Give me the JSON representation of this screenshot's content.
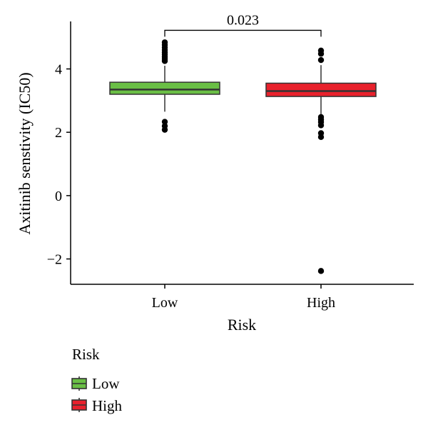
{
  "chart_data": {
    "type": "box",
    "title": "",
    "xlabel": "Risk",
    "ylabel": "Axitinib senstivity (IC50)",
    "ylim": [
      -2.8,
      5.5
    ],
    "yticks": [
      -2,
      0,
      2,
      4
    ],
    "ytick_labels": [
      "−2",
      "0",
      "2",
      "4"
    ],
    "categories": [
      "Low",
      "High"
    ],
    "series": [
      {
        "name": "Low",
        "color": "#6abf45",
        "q1": 3.2,
        "median": 3.35,
        "q3": 3.58,
        "whisker_low": 2.65,
        "whisker_high": 4.1,
        "outliers": [
          4.25,
          4.32,
          4.38,
          4.45,
          4.52,
          4.6,
          4.68,
          4.76,
          4.84,
          2.33,
          2.2,
          2.08
        ]
      },
      {
        "name": "High",
        "color": "#e8212c",
        "q1": 3.13,
        "median": 3.3,
        "q3": 3.55,
        "whisker_low": 2.55,
        "whisker_high": 4.12,
        "outliers": [
          4.28,
          4.48,
          4.58,
          2.48,
          2.4,
          2.32,
          2.22,
          1.97,
          1.85,
          -2.38
        ]
      }
    ],
    "annotation": {
      "text": "0.023",
      "between": [
        "Low",
        "High"
      ],
      "y": 5.22
    },
    "legend": {
      "title": "Risk",
      "position": "bottom-left",
      "items": [
        "Low",
        "High"
      ]
    },
    "grid": false
  }
}
